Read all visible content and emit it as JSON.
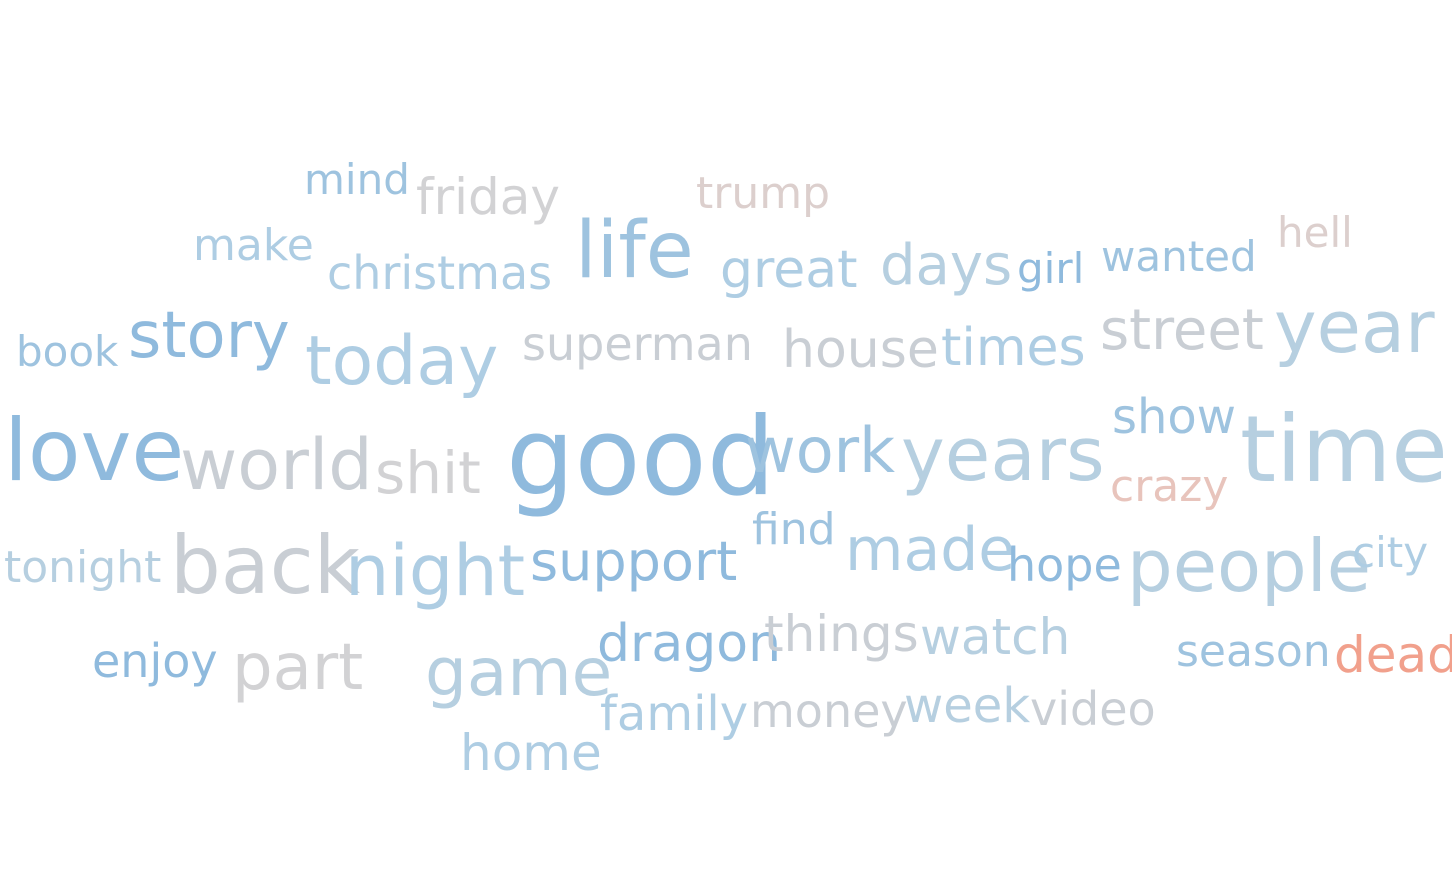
{
  "words": {
    "mind": "mind",
    "friday": "friday",
    "trump": "trump",
    "make": "make",
    "christmas": "christmas",
    "life": "life",
    "great": "great",
    "days": "days",
    "girl": "girl",
    "wanted": "wanted",
    "hell": "hell",
    "book": "book",
    "story": "story",
    "today": "today",
    "superman": "superman",
    "house": "house",
    "times": "times",
    "street": "street",
    "year": "year",
    "love": "love",
    "world": "world",
    "shit": "shit",
    "good": "good",
    "work": "work",
    "years": "years",
    "show": "show",
    "crazy": "crazy",
    "time": "time",
    "tonight": "tonight",
    "back": "back",
    "night": "night",
    "support": "support",
    "find": "find",
    "made": "made",
    "hope": "hope",
    "people": "people",
    "city": "city",
    "enjoy": "enjoy",
    "part": "part",
    "game": "game",
    "dragon": "dragon",
    "things": "things",
    "watch": "watch",
    "season": "season",
    "dead": "dead",
    "family": "family",
    "money": "money",
    "week": "week",
    "video": "video",
    "home": "home"
  },
  "colors": {
    "blue_strong": "#8fbadd",
    "blue_light": "#aecde3",
    "gray": "#c9ced4",
    "beige": "#dccfcd",
    "pink": "#e8c4bc",
    "salmon": "#f1a08c"
  }
}
